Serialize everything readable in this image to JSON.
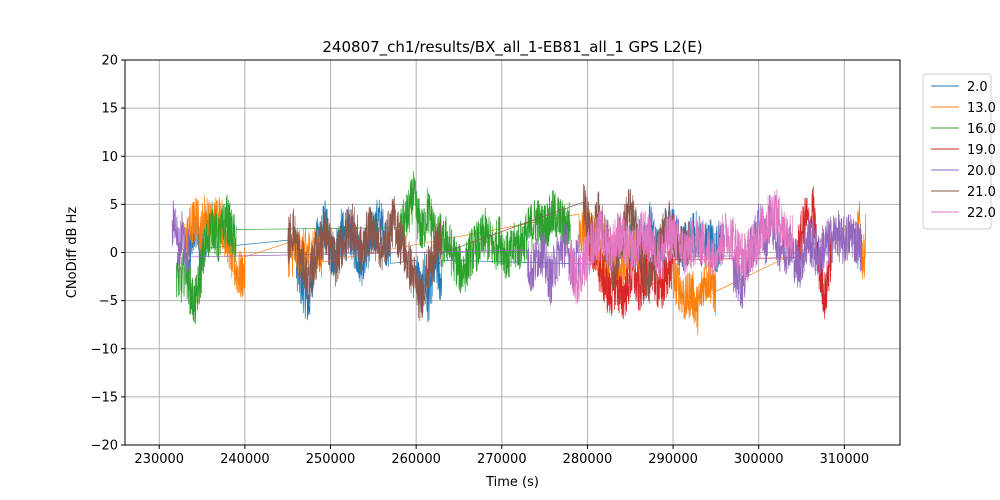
{
  "chart_data": {
    "type": "line",
    "title": "240807_ch1/results/BX_all_1-EB81_all_1 GPS L2(E)",
    "xlabel": "Time (s)",
    "ylabel": "CNoDiff dB Hz",
    "xlim": [
      226000,
      316500
    ],
    "ylim": [
      -20,
      20
    ],
    "xticks": [
      230000,
      240000,
      250000,
      260000,
      270000,
      280000,
      290000,
      300000,
      310000
    ],
    "yticks": [
      -20,
      -15,
      -10,
      -5,
      0,
      5,
      10,
      15,
      20
    ],
    "grid": true,
    "legend_position": "outside-right-top",
    "series": [
      {
        "name": "2.0",
        "color": "#1f77b4",
        "segments": [
          {
            "start": 233500,
            "end": 235500,
            "values": [
              -1.5,
              0.5,
              2.5,
              1.5,
              3.0,
              1.0,
              -1.0,
              1.5,
              2.0,
              0.5
            ]
          },
          {
            "start": 246000,
            "end": 257000,
            "values": [
              -1.0,
              -3.0,
              -4.0,
              -5.5,
              -2.0,
              1.0,
              2.0,
              3.0,
              1.0,
              -1.0,
              0.5,
              2.0,
              1.5,
              2.5,
              1.0,
              0.0,
              -1.0,
              0.5,
              1.0,
              2.0,
              3.5,
              2.5,
              1.0,
              0.5
            ]
          },
          {
            "start": 260000,
            "end": 263000,
            "values": [
              -1.5,
              -3.0,
              -4.5,
              -2.0,
              -5.5,
              -3.5,
              -2.0,
              -1.0,
              -2.5,
              -3.0
            ]
          },
          {
            "start": 285000,
            "end": 296000,
            "values": [
              1.0,
              2.0,
              0.5,
              1.5,
              3.0,
              1.0,
              0.0,
              1.5,
              2.5,
              2.0,
              1.0,
              0.5,
              1.0,
              2.0,
              1.5,
              0.5,
              1.5,
              0.0,
              1.0,
              0.5
            ]
          }
        ]
      },
      {
        "name": "13.0",
        "color": "#ff7f0e",
        "segments": [
          {
            "start": 233000,
            "end": 240000,
            "values": [
              1.0,
              2.0,
              3.0,
              3.5,
              2.0,
              4.0,
              3.0,
              2.5,
              4.0,
              3.5,
              2.0,
              1.0,
              -1.0,
              -2.0,
              -2.5,
              -2.0
            ]
          },
          {
            "start": 245000,
            "end": 249000,
            "values": [
              0.0,
              0.0,
              0.0,
              0.0,
              0.0
            ]
          },
          {
            "start": 279000,
            "end": 287000,
            "values": [
              1.5,
              3.0,
              2.0,
              1.0,
              -1.0,
              -2.0,
              -3.0,
              -1.5,
              -2.5,
              0.0,
              1.0,
              0.5,
              -1.0,
              -2.0
            ]
          },
          {
            "start": 290000,
            "end": 295000,
            "values": [
              -2.5,
              -3.5,
              -5.0,
              -4.0,
              -6.0,
              -3.0,
              -2.5,
              -4.5
            ]
          },
          {
            "start": 311500,
            "end": 312500,
            "values": [
              1.5,
              3.0,
              0.5,
              -1.0,
              2.0
            ]
          }
        ]
      },
      {
        "name": "16.0",
        "color": "#2ca02c",
        "segments": [
          {
            "start": 232000,
            "end": 239000,
            "values": [
              -2.0,
              -3.0,
              -1.5,
              -4.0,
              -5.5,
              -3.0,
              0.0,
              2.0,
              3.0,
              1.0,
              2.5,
              3.5,
              2.0,
              1.0
            ]
          },
          {
            "start": 258000,
            "end": 263000,
            "values": [
              1.5,
              3.0,
              4.0,
              6.0,
              3.5,
              2.0,
              4.5,
              3.0,
              1.0,
              2.0
            ]
          },
          {
            "start": 263000,
            "end": 272000,
            "values": [
              0.5,
              1.5,
              0.0,
              -1.0,
              -2.0,
              -1.5,
              0.0,
              0.5,
              1.0,
              2.0,
              1.0,
              0.5,
              1.5,
              0.0,
              -0.5,
              0.5,
              1.0
            ]
          },
          {
            "start": 272000,
            "end": 278000,
            "values": [
              0.5,
              1.5,
              2.5,
              3.5,
              2.5,
              3.0,
              4.0,
              3.5,
              2.5,
              3.0
            ]
          }
        ]
      },
      {
        "name": "19.0",
        "color": "#d62728",
        "segments": [
          {
            "start": 280000,
            "end": 290000,
            "values": [
              2.0,
              0.5,
              -1.5,
              -3.0,
              -4.5,
              -3.0,
              -5.0,
              -3.5,
              -2.0,
              -4.0,
              -2.5,
              -1.0,
              -3.0,
              -4.0,
              -2.0,
              -1.0
            ]
          },
          {
            "start": 304500,
            "end": 308500,
            "values": [
              0.0,
              1.5,
              2.5,
              4.0,
              2.0,
              5.0,
              1.0,
              -1.5,
              -3.0,
              -5.0,
              -2.0,
              0.0
            ]
          }
        ]
      },
      {
        "name": "20.0",
        "color": "#9467bd",
        "segments": [
          {
            "start": 231500,
            "end": 233500,
            "values": [
              2.0,
              4.0,
              1.5,
              0.0,
              2.5,
              1.0,
              -0.5,
              1.0
            ]
          },
          {
            "start": 273000,
            "end": 279000,
            "values": [
              -1.0,
              -2.0,
              -0.5,
              0.5,
              -1.5,
              -3.0,
              -1.0,
              0.0,
              1.0,
              -0.5,
              -2.0,
              0.0
            ]
          },
          {
            "start": 297000,
            "end": 303000,
            "values": [
              -1.5,
              -2.5,
              -3.5,
              -1.0,
              0.5,
              2.0,
              3.0,
              1.0,
              4.0,
              2.0,
              0.5,
              1.0
            ]
          },
          {
            "start": 303000,
            "end": 312000,
            "values": [
              0.0,
              1.0,
              -0.5,
              -1.5,
              0.0,
              1.5,
              0.5,
              -0.5,
              0.5,
              1.0,
              1.5,
              2.0,
              1.0,
              1.5,
              2.0,
              1.0,
              0.5
            ]
          }
        ]
      },
      {
        "name": "21.0",
        "color": "#8c564b",
        "segments": [
          {
            "start": 245000,
            "end": 263000,
            "values": [
              1.0,
              2.5,
              0.0,
              -1.5,
              -3.0,
              -1.0,
              1.0,
              2.0,
              0.5,
              -1.0,
              0.5,
              2.0,
              3.0,
              1.5,
              0.0,
              2.0,
              2.5,
              1.0,
              0.5,
              2.0,
              3.5,
              1.5,
              0.0,
              -1.5,
              -3.0,
              -5.0,
              -2.5,
              -1.0,
              0.5,
              1.0
            ]
          },
          {
            "start": 279500,
            "end": 292000,
            "values": [
              5.0,
              3.0,
              1.5,
              4.0,
              2.0,
              0.5,
              -2.0,
              1.0,
              2.5,
              4.5,
              3.0,
              1.0,
              -1.5,
              -3.0,
              -1.0,
              0.5,
              2.0,
              3.0,
              1.0,
              0.0,
              1.0,
              0.5
            ]
          }
        ]
      },
      {
        "name": "22.0",
        "color": "#e377c2",
        "segments": [
          {
            "start": 278000,
            "end": 304000,
            "values": [
              -1.0,
              -3.0,
              -1.5,
              0.0,
              1.5,
              2.0,
              1.0,
              0.5,
              2.0,
              1.0,
              0.0,
              1.0,
              2.0,
              1.5,
              0.5,
              -0.5,
              1.0,
              2.0,
              1.0,
              0.0,
              0.5,
              1.5,
              1.0,
              0.0,
              0.5,
              1.0,
              2.0,
              1.5,
              0.0,
              -0.5,
              0.5,
              1.0,
              2.5,
              3.5,
              4.5,
              3.0,
              2.0,
              1.5
            ]
          }
        ]
      }
    ]
  }
}
